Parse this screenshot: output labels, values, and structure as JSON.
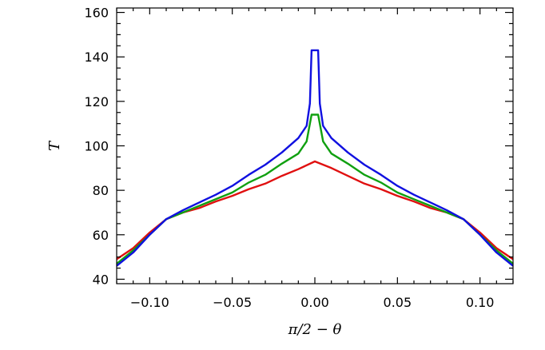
{
  "chart_data": {
    "type": "line",
    "title": "",
    "xlabel": "π/2 − θ",
    "ylabel": "T",
    "xlim": [
      -0.12,
      0.12
    ],
    "ylim": [
      38,
      162
    ],
    "x_ticks": [
      -0.1,
      -0.05,
      0.0,
      0.05,
      0.1
    ],
    "x_tick_labels": [
      "−0.10",
      "−0.05",
      "0.00",
      "0.05",
      "0.10"
    ],
    "y_ticks": [
      40,
      60,
      80,
      100,
      120,
      140,
      160
    ],
    "y_tick_labels": [
      "40",
      "60",
      "80",
      "100",
      "120",
      "140",
      "160"
    ],
    "grid": false,
    "series": [
      {
        "color": "#e01010",
        "x": [
          -0.12,
          -0.11,
          -0.1,
          -0.09,
          -0.08,
          -0.07,
          -0.06,
          -0.05,
          -0.04,
          -0.03,
          -0.02,
          -0.01,
          0.0,
          0.01,
          0.02,
          0.03,
          0.04,
          0.05,
          0.06,
          0.07,
          0.08,
          0.09,
          0.1,
          0.11,
          0.12
        ],
        "y": [
          49,
          54,
          61,
          67,
          70,
          72,
          75,
          77.5,
          80.5,
          83,
          86.5,
          89.5,
          93,
          90,
          86.5,
          83,
          80.5,
          77.5,
          75,
          72,
          70,
          67,
          61,
          54,
          49
        ]
      },
      {
        "color": "#10a010",
        "x": [
          -0.12,
          -0.11,
          -0.1,
          -0.09,
          -0.08,
          -0.07,
          -0.06,
          -0.05,
          -0.04,
          -0.03,
          -0.02,
          -0.01,
          -0.005,
          -0.002,
          0.002,
          0.005,
          0.01,
          0.02,
          0.03,
          0.04,
          0.05,
          0.06,
          0.07,
          0.08,
          0.09,
          0.1,
          0.11,
          0.12
        ],
        "y": [
          47,
          53,
          60,
          67,
          70,
          73,
          76,
          79,
          83.5,
          87,
          92,
          96.5,
          102,
          114,
          114,
          102,
          96.5,
          92,
          87,
          83.5,
          79,
          76,
          73,
          70,
          67,
          60,
          53,
          47
        ]
      },
      {
        "color": "#1010e0",
        "x": [
          -0.12,
          -0.11,
          -0.1,
          -0.09,
          -0.08,
          -0.07,
          -0.06,
          -0.05,
          -0.04,
          -0.03,
          -0.02,
          -0.01,
          -0.005,
          -0.003,
          -0.002,
          0.002,
          0.003,
          0.005,
          0.01,
          0.02,
          0.03,
          0.04,
          0.05,
          0.06,
          0.07,
          0.08,
          0.09,
          0.1,
          0.11,
          0.12
        ],
        "y": [
          46,
          52,
          60,
          67,
          71,
          74.5,
          78,
          82,
          87,
          91.5,
          97,
          103.5,
          109,
          119,
          143,
          143,
          119,
          109,
          103.5,
          97,
          91.5,
          87,
          82,
          78,
          74.5,
          71,
          67,
          60,
          52,
          46
        ]
      }
    ]
  }
}
